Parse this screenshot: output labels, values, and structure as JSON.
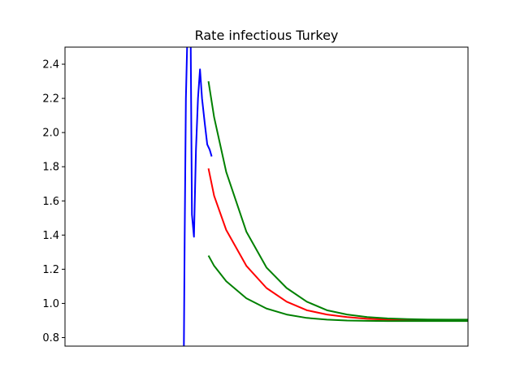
{
  "chart_data": {
    "type": "line",
    "title": "Rate infectious Turkey",
    "xlabel": "",
    "ylabel": "",
    "xlim": [
      0,
      100
    ],
    "ylim": [
      0.75,
      2.5
    ],
    "yticks": [
      0.8,
      1.0,
      1.2,
      1.4,
      1.6,
      1.8,
      2.0,
      2.2,
      2.4
    ],
    "grid": false,
    "series": [
      {
        "color": "#0000ff",
        "x": [
          29.5,
          29.7,
          30.0,
          30.3,
          30.5,
          30.8,
          31.2,
          31.5,
          32.0,
          32.5,
          33.0,
          33.5,
          34.0,
          34.7,
          35.3,
          35.9,
          36.4
        ],
        "y": [
          0.75,
          1.4,
          2.2,
          2.5,
          2.55,
          2.55,
          2.5,
          1.52,
          1.39,
          1.9,
          2.2,
          2.37,
          2.2,
          2.05,
          1.93,
          1.9,
          1.86
        ]
      },
      {
        "color": "#ff0000",
        "x": [
          35.6,
          37,
          40,
          45,
          50,
          55,
          60,
          65,
          70,
          75,
          80,
          85,
          90,
          95,
          100
        ],
        "y": [
          1.79,
          1.63,
          1.43,
          1.22,
          1.09,
          1.01,
          0.96,
          0.935,
          0.92,
          0.91,
          0.905,
          0.903,
          0.902,
          0.901,
          0.9
        ]
      },
      {
        "color": "#008000",
        "x": [
          35.6,
          37,
          40,
          45,
          50,
          55,
          60,
          65,
          70,
          75,
          80,
          85,
          90,
          95,
          100
        ],
        "y": [
          2.3,
          2.09,
          1.77,
          1.42,
          1.21,
          1.09,
          1.01,
          0.96,
          0.935,
          0.92,
          0.912,
          0.908,
          0.906,
          0.905,
          0.905
        ]
      },
      {
        "color": "#008000",
        "x": [
          35.6,
          37,
          40,
          45,
          50,
          55,
          60,
          65,
          70,
          75,
          80,
          85,
          90,
          95,
          100
        ],
        "y": [
          1.28,
          1.22,
          1.13,
          1.03,
          0.97,
          0.935,
          0.915,
          0.905,
          0.9,
          0.898,
          0.897,
          0.897,
          0.897,
          0.897,
          0.897
        ]
      }
    ]
  }
}
